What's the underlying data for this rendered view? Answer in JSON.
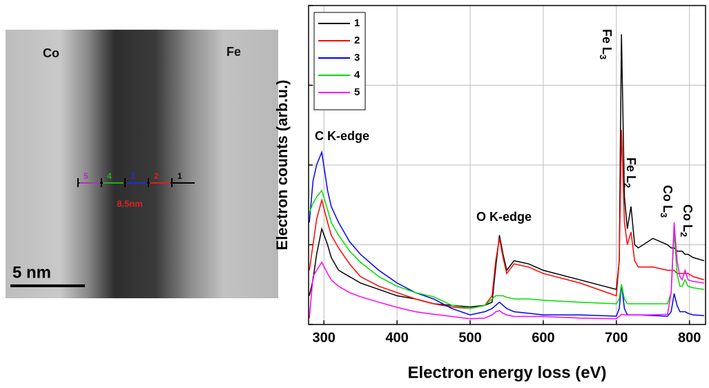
{
  "micrograph": {
    "left_label": "Co",
    "right_label": "Fe",
    "scale_label": "5 nm",
    "ruler_label": "8.5nm",
    "positions": [
      {
        "label": "5",
        "color": "#b030c0"
      },
      {
        "label": "4",
        "color": "#20b020"
      },
      {
        "label": "3",
        "color": "#2030d0"
      },
      {
        "label": "2",
        "color": "#e02020"
      },
      {
        "label": "1",
        "color": "#000000"
      }
    ]
  },
  "chart_data": {
    "type": "line",
    "xlabel": "Electron energy loss (eV)",
    "ylabel": "Electron counts (arb.u.)",
    "xlim": [
      279,
      822
    ],
    "ylim": [
      0,
      100
    ],
    "xticks": [
      300,
      400,
      500,
      600,
      700,
      800
    ],
    "yticks": [
      0,
      25,
      50,
      75,
      100
    ],
    "grid": true,
    "legend": "upper-left",
    "annotations": [
      {
        "text": "C K-edge"
      },
      {
        "text": "O K-edge"
      },
      {
        "text": "Fe L",
        "sub": "3"
      },
      {
        "text": "Fe L",
        "sub": "2"
      },
      {
        "text": "Co L",
        "sub": "3"
      },
      {
        "text": "Co L",
        "sub": "2"
      }
    ],
    "x": [
      280,
      285,
      290,
      297,
      305,
      310,
      320,
      335,
      350,
      375,
      400,
      425,
      450,
      475,
      500,
      520,
      530,
      535,
      540,
      545,
      550,
      560,
      580,
      600,
      650,
      700,
      704,
      707,
      711,
      715,
      720,
      725,
      730,
      750,
      770,
      775,
      779,
      783,
      787,
      790,
      794,
      798,
      805,
      820
    ],
    "series": [
      {
        "name": "1",
        "color": "#000000",
        "values": [
          9,
          14,
          22,
          30,
          25,
          21,
          17,
          15,
          13,
          11,
          9,
          8,
          6.5,
          6,
          5.5,
          6,
          7,
          18,
          28,
          22,
          17,
          20,
          19,
          17,
          14,
          11,
          20,
          91,
          40,
          30,
          37,
          25,
          24,
          27,
          25,
          24,
          24,
          23,
          23,
          23,
          22,
          22,
          21,
          20
        ]
      },
      {
        "name": "2",
        "color": "#ff0000",
        "values": [
          17,
          25,
          33,
          39,
          32,
          28,
          24,
          19,
          15,
          12,
          10,
          8,
          6.5,
          5.5,
          5,
          6,
          9,
          20,
          27,
          21,
          16,
          19,
          18,
          16,
          13,
          9,
          20,
          61,
          32,
          25,
          29,
          20,
          18,
          18,
          17,
          17,
          17,
          16,
          16,
          16,
          16,
          16,
          15,
          14
        ]
      },
      {
        "name": "3",
        "color": "#0000ff",
        "values": [
          32,
          45,
          50,
          54,
          42,
          37,
          32,
          26,
          22,
          17,
          13,
          10,
          8,
          5,
          3,
          4,
          5,
          6,
          7,
          6,
          5,
          4,
          3.5,
          3,
          3,
          2.6,
          5,
          12.6,
          5,
          3,
          3,
          3,
          3,
          2.8,
          2.6,
          4,
          9.7,
          6,
          4,
          4,
          4,
          3.5,
          3,
          2.8
        ]
      },
      {
        "name": "4",
        "color": "#00dd00",
        "values": [
          35,
          38,
          40,
          42,
          36,
          32,
          28,
          23,
          19.5,
          15,
          12,
          10,
          8.7,
          6,
          5,
          6,
          8,
          9,
          9,
          9,
          8.5,
          8,
          8,
          7.6,
          7,
          6.5,
          8,
          12.6,
          8,
          6.5,
          6.5,
          6.5,
          6.5,
          6.5,
          6.5,
          10,
          29,
          16,
          12,
          12,
          14,
          12,
          11.5,
          11
        ]
      },
      {
        "name": "5",
        "color": "#ff00ff",
        "values": [
          2,
          15,
          17,
          19.5,
          16,
          14,
          12,
          10,
          8.7,
          7,
          5.4,
          4,
          3.2,
          2.5,
          1.8,
          2,
          3,
          4,
          4.3,
          3.5,
          3,
          2.5,
          2.5,
          2.5,
          2,
          1.8,
          2.5,
          3.2,
          3,
          3,
          3,
          3,
          3,
          3,
          3.2,
          10,
          32,
          20,
          15,
          14,
          17,
          14,
          13.5,
          13
        ]
      }
    ]
  }
}
